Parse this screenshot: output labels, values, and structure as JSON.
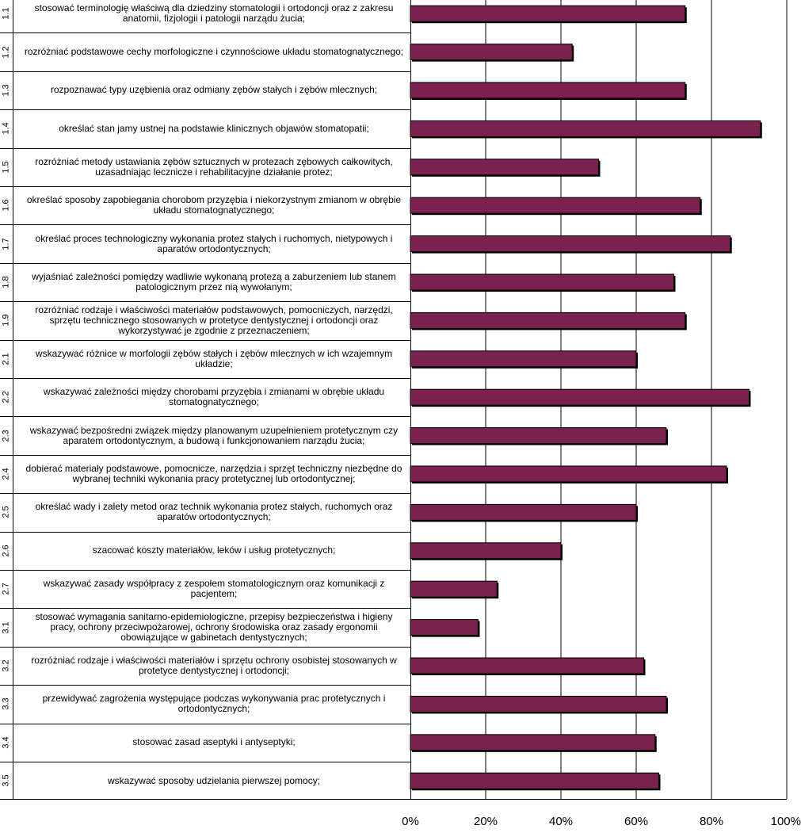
{
  "chart_data": {
    "type": "bar",
    "orientation": "horizontal",
    "value_unit": "%",
    "xlim": [
      0,
      100
    ],
    "xticks": [
      "0%",
      "20%",
      "40%",
      "60%",
      "80%",
      "100%"
    ],
    "grid": true,
    "bar_color": "#7b2150",
    "rows": [
      {
        "code": "1.1",
        "label": "stosować terminologię właściwą dla dziedziny stomatologii i ortodoncji oraz z zakresu anatomii, fizjologii i patologii narządu żucia;",
        "value": 73
      },
      {
        "code": "1.2",
        "label": "rozróżniać podstawowe cechy morfologiczne i czynnościowe układu stomatognatycznego;",
        "value": 43
      },
      {
        "code": "1.3",
        "label": "rozpoznawać typy uzębienia oraz odmiany zębów stałych i zębów mlecznych;",
        "value": 73
      },
      {
        "code": "1.4",
        "label": "określać stan jamy ustnej na podstawie klinicznych objawów stomatopatii;",
        "value": 93
      },
      {
        "code": "1.5",
        "label": "rozróżniać metody ustawiania zębów sztucznych w protezach zębowych całkowitych, uzasadniając lecznicze i rehabilitacyjne działanie protez;",
        "value": 50
      },
      {
        "code": "1.6",
        "label": "określać sposoby zapobiegania chorobom przyzębia i niekorzystnym zmianom w obrębie układu stomatognatycznego;",
        "value": 77
      },
      {
        "code": "1.7",
        "label": "określać proces technologiczny wykonania protez stałych i ruchomych, nietypowych i aparatów ortodontycznych;",
        "value": 85
      },
      {
        "code": "1.8",
        "label": "wyjaśniać zależności pomiędzy wadliwie wykonaną protezą a zaburzeniem lub stanem patologicznym przez nią wywołanym;",
        "value": 70
      },
      {
        "code": "1.9",
        "label": "rozróżniać rodzaje i właściwości materiałów podstawowych, pomocniczych, narzędzi, sprzętu technicznego stosowanych w protetyce dentystycznej i ortodoncji oraz wykorzystywać je zgodnie z przeznaczeniem;",
        "value": 73
      },
      {
        "code": "2.1",
        "label": "wskazywać różnice w morfologii zębów stałych i zębów mlecznych w ich wzajemnym układzie;",
        "value": 60
      },
      {
        "code": "2.2",
        "label": "wskazywać zależności między chorobami przyzębia i zmianami w obrębie układu stomatognatycznego;",
        "value": 90
      },
      {
        "code": "2.3",
        "label": "wskazywać bezpośredni związek między planowanym uzupełnieniem protetycznym czy aparatem ortodontycznym, a budową i funkcjonowaniem narządu żucia;",
        "value": 68
      },
      {
        "code": "2.4",
        "label": "dobierać materiały podstawowe, pomocnicze, narzędzia i sprzęt techniczny niezbędne do wybranej techniki wykonania pracy protetycznej lub ortodontycznej;",
        "value": 84
      },
      {
        "code": "2.5",
        "label": "określać wady i zalety metod oraz technik wykonania protez stałych, ruchomych oraz aparatów ortodontycznych;",
        "value": 60
      },
      {
        "code": "2.6",
        "label": "szacować koszty materiałów, leków i usług protetycznych;",
        "value": 40
      },
      {
        "code": "2.7",
        "label": "wskazywać zasady współpracy z zespołem stomatologicznym oraz komunikacji z pacjentem;",
        "value": 23
      },
      {
        "code": "3.1",
        "label": "stosować wymagania sanitarno-epidemiologiczne, przepisy bezpieczeństwa i higieny pracy, ochrony przeciwpożarowej, ochrony środowiska oraz zasady ergonomii obowiązujące w gabinetach dentystycznych;",
        "value": 18
      },
      {
        "code": "3.2",
        "label": "rozróżniać rodzaje i właściwości materiałów i sprzętu ochrony osobistej stosowanych w protetyce dentystycznej i ortodoncji;",
        "value": 62
      },
      {
        "code": "3.3",
        "label": "przewidywać zagrożenia występujące podczas wykonywania prac protetycznych i ortodontycznych;",
        "value": 68
      },
      {
        "code": "3.4",
        "label": "stosować zasad aseptyki i antyseptyki;",
        "value": 65
      },
      {
        "code": "3.5",
        "label": "wskazywać sposoby udzielania pierwszej pomocy;",
        "value": 66
      }
    ]
  }
}
